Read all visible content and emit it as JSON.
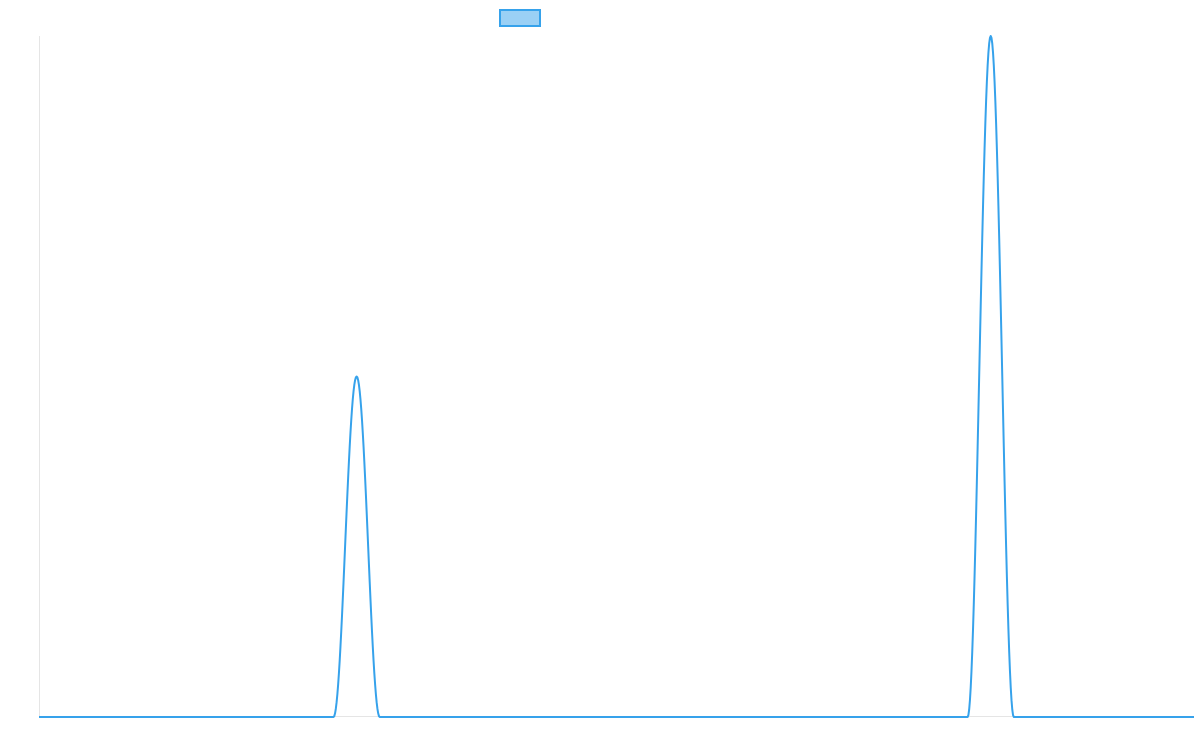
{
  "chart_data": {
    "type": "line",
    "title": "",
    "xlabel": "",
    "ylabel": "",
    "xlim": [
      0,
      100
    ],
    "ylim": [
      0,
      1
    ],
    "grid": false,
    "legend": {
      "position": "top-center",
      "label": ""
    },
    "series": [
      {
        "color": "#36a2eb",
        "fill": "#9ad0f5",
        "peaks": [
          {
            "center": 27.5,
            "height": 0.5,
            "halfwidth": 2.0
          },
          {
            "center": 82.4,
            "height": 1.0,
            "halfwidth": 2.0
          }
        ]
      }
    ]
  }
}
